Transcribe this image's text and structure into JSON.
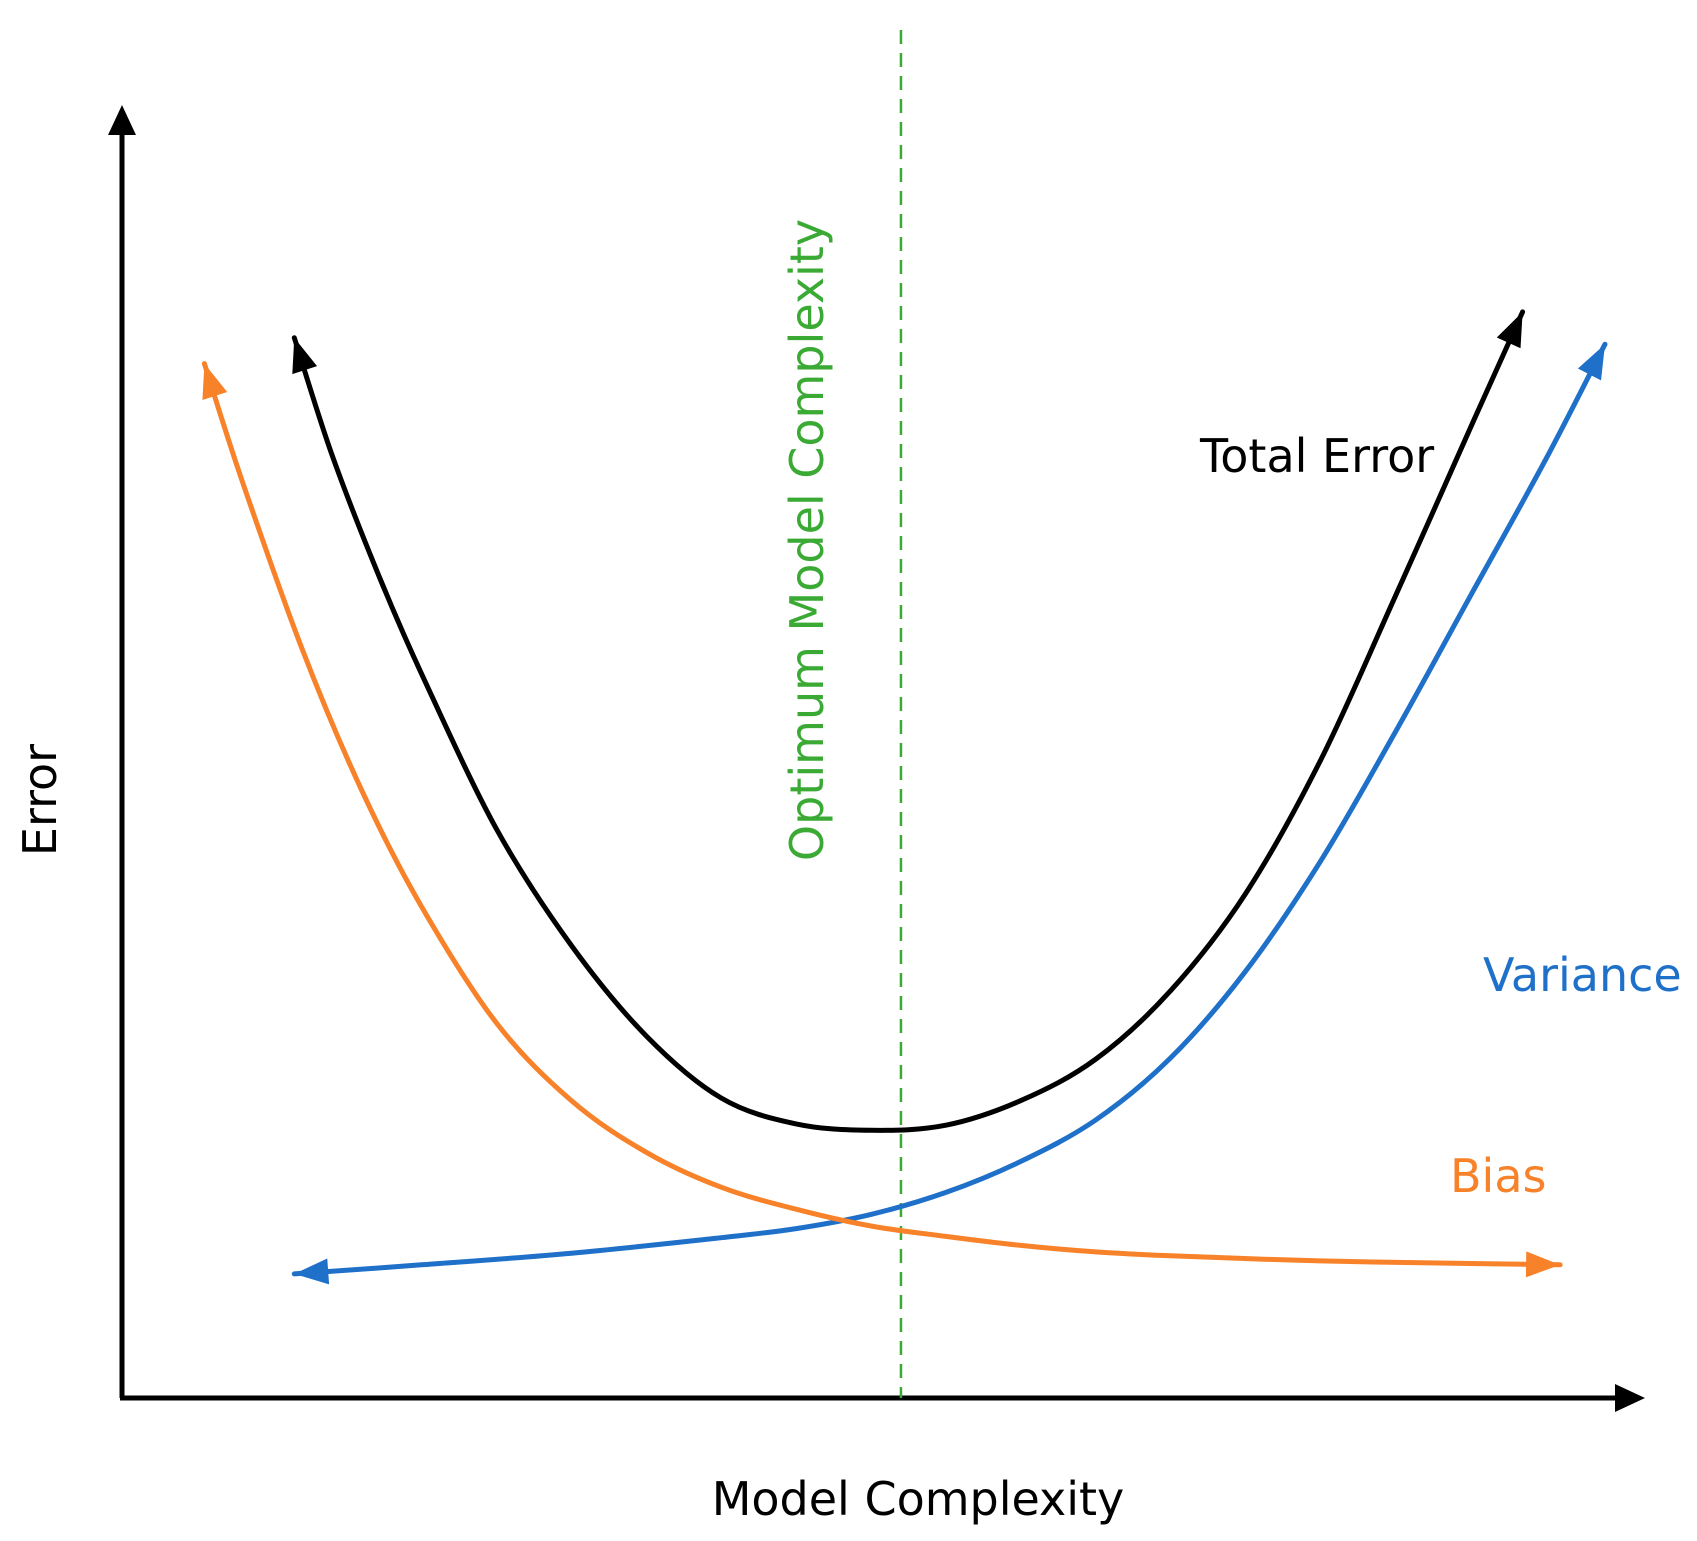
{
  "chart_data": {
    "type": "line",
    "title": "",
    "xlabel": "Model Complexity",
    "ylabel": "Error",
    "xlim": [
      0,
      100
    ],
    "ylim": [
      0,
      100
    ],
    "grid": false,
    "ticks": false,
    "optimum": {
      "label": "Optimum Model Complexity",
      "x": 52,
      "color": "#3aaa35"
    },
    "series": [
      {
        "name": "Total Error",
        "color": "#000000",
        "arrows": "both-ends-up",
        "x": [
          11.5,
          14,
          17,
          20,
          25,
          30,
          35,
          40,
          45,
          50,
          55,
          60,
          65,
          70,
          75,
          80,
          85,
          90,
          93.5
        ],
        "y": [
          82,
          73,
          64,
          56,
          44,
          35,
          28,
          23.2,
          21.2,
          20.7,
          21.1,
          23,
          26.2,
          31.5,
          39,
          49.3,
          62,
          75,
          84
        ]
      },
      {
        "name": "Variance",
        "color": "#1f70c8",
        "arrows": "both-ends",
        "x": [
          11.5,
          20,
          30,
          40,
          45,
          50,
          55,
          60,
          65,
          70,
          75,
          80,
          85,
          90,
          95,
          99
        ],
        "y": [
          9.6,
          10.3,
          11.2,
          12.4,
          13.1,
          14.2,
          15.9,
          18.3,
          21.5,
          26.3,
          33,
          41.5,
          51.5,
          62,
          72.5,
          81.5
        ]
      },
      {
        "name": "Bias",
        "color": "#f7822a",
        "arrows": "both-ends",
        "x": [
          5.5,
          8,
          12,
          16,
          20,
          25,
          30,
          35,
          40,
          45,
          50,
          55,
          60,
          65,
          70,
          80,
          90,
          96
        ],
        "y": [
          80,
          71,
          58,
          47,
          38,
          29,
          23,
          19,
          16.3,
          14.6,
          13.3,
          12.5,
          11.8,
          11.3,
          11,
          10.6,
          10.4,
          10.3
        ]
      }
    ]
  }
}
